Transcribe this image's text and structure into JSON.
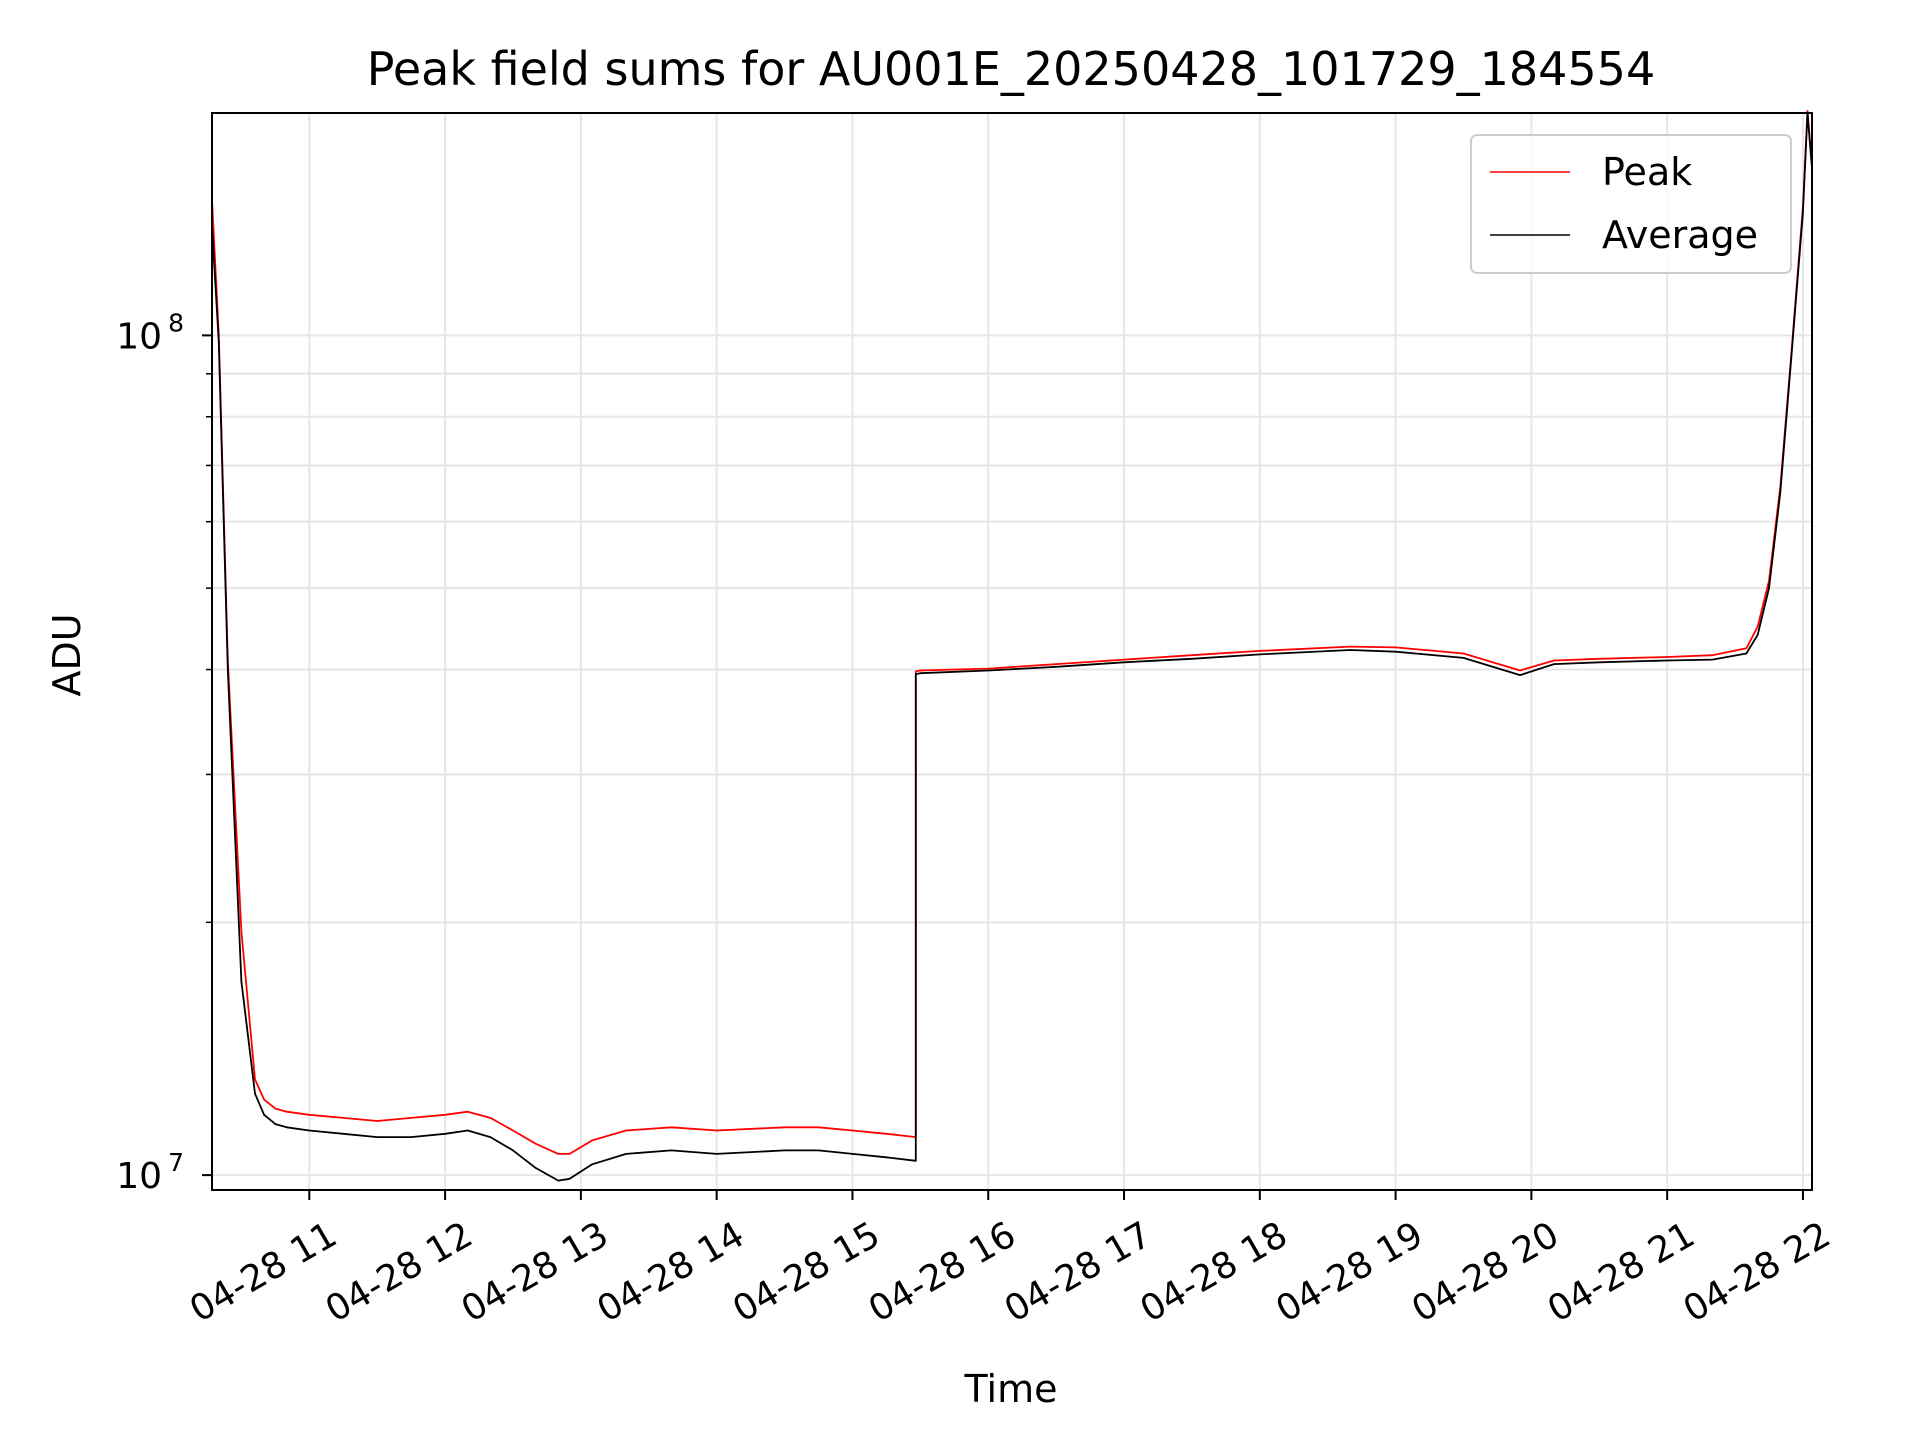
{
  "chart_data": {
    "type": "line",
    "title": "Peak field sums for AU001E_20250428_101729_184554",
    "xlabel": "Time",
    "ylabel": "ADU",
    "y_scale": "log",
    "ylim": [
      9600000,
      184000000
    ],
    "xlim": [
      "2025-04-28 10:17",
      "2025-04-28 22:04"
    ],
    "grid": true,
    "legend_position": "upper right",
    "x_ticks": [
      {
        "t": "2025-04-28 11:00",
        "label": "04-28 11"
      },
      {
        "t": "2025-04-28 12:00",
        "label": "04-28 12"
      },
      {
        "t": "2025-04-28 13:00",
        "label": "04-28 13"
      },
      {
        "t": "2025-04-28 14:00",
        "label": "04-28 14"
      },
      {
        "t": "2025-04-28 15:00",
        "label": "04-28 15"
      },
      {
        "t": "2025-04-28 16:00",
        "label": "04-28 16"
      },
      {
        "t": "2025-04-28 17:00",
        "label": "04-28 17"
      },
      {
        "t": "2025-04-28 18:00",
        "label": "04-28 18"
      },
      {
        "t": "2025-04-28 19:00",
        "label": "04-28 19"
      },
      {
        "t": "2025-04-28 20:00",
        "label": "04-28 20"
      },
      {
        "t": "2025-04-28 21:00",
        "label": "04-28 21"
      },
      {
        "t": "2025-04-28 22:00",
        "label": "04-28 22"
      }
    ],
    "y_ticks": [
      {
        "value": 10000000,
        "base": "10",
        "exp": "7"
      },
      {
        "value": 100000000,
        "base": "10",
        "exp": "8"
      }
    ],
    "series": [
      {
        "name": "Average",
        "color": "#000000",
        "x": [
          "2025-04-28 10:17",
          "2025-04-28 10:20",
          "2025-04-28 10:24",
          "2025-04-28 10:30",
          "2025-04-28 10:36",
          "2025-04-28 10:40",
          "2025-04-28 10:45",
          "2025-04-28 10:50",
          "2025-04-28 11:00",
          "2025-04-28 11:15",
          "2025-04-28 11:30",
          "2025-04-28 11:45",
          "2025-04-28 12:00",
          "2025-04-28 12:10",
          "2025-04-28 12:20",
          "2025-04-28 12:30",
          "2025-04-28 12:40",
          "2025-04-28 12:50",
          "2025-04-28 12:55",
          "2025-04-28 13:05",
          "2025-04-28 13:20",
          "2025-04-28 13:40",
          "2025-04-28 14:00",
          "2025-04-28 14:30",
          "2025-04-28 14:45",
          "2025-04-28 15:00",
          "2025-04-28 15:15",
          "2025-04-28 15:28",
          "2025-04-28 15:28",
          "2025-04-28 15:30",
          "2025-04-28 16:00",
          "2025-04-28 16:30",
          "2025-04-28 17:00",
          "2025-04-28 17:30",
          "2025-04-28 18:00",
          "2025-04-28 18:40",
          "2025-04-28 19:00",
          "2025-04-28 19:30",
          "2025-04-28 19:55",
          "2025-04-28 20:10",
          "2025-04-28 20:30",
          "2025-04-28 21:00",
          "2025-04-28 21:20",
          "2025-04-28 21:35",
          "2025-04-28 21:40",
          "2025-04-28 21:45",
          "2025-04-28 21:50",
          "2025-04-28 21:55",
          "2025-04-28 22:00",
          "2025-04-28 22:02",
          "2025-04-28 22:04"
        ],
        "y": [
          135000000,
          98000000,
          40000000,
          17000000,
          12500000,
          11800000,
          11500000,
          11400000,
          11300000,
          11200000,
          11100000,
          11100000,
          11200000,
          11300000,
          11100000,
          10700000,
          10200000,
          9850000,
          9900000,
          10300000,
          10600000,
          10700000,
          10600000,
          10700000,
          10700000,
          10600000,
          10500000,
          10400000,
          39500000,
          39600000,
          39900000,
          40300000,
          40800000,
          41200000,
          41700000,
          42200000,
          42000000,
          41300000,
          39400000,
          40600000,
          40800000,
          41000000,
          41100000,
          41800000,
          44000000,
          50000000,
          65000000,
          95000000,
          140000000,
          184000000,
          158000000
        ]
      },
      {
        "name": "Peak",
        "color": "#ff0000",
        "x": [
          "2025-04-28 10:17",
          "2025-04-28 10:20",
          "2025-04-28 10:24",
          "2025-04-28 10:30",
          "2025-04-28 10:36",
          "2025-04-28 10:40",
          "2025-04-28 10:45",
          "2025-04-28 10:50",
          "2025-04-28 11:00",
          "2025-04-28 11:15",
          "2025-04-28 11:30",
          "2025-04-28 11:45",
          "2025-04-28 12:00",
          "2025-04-28 12:10",
          "2025-04-28 12:20",
          "2025-04-28 12:30",
          "2025-04-28 12:40",
          "2025-04-28 12:50",
          "2025-04-28 12:55",
          "2025-04-28 13:05",
          "2025-04-28 13:20",
          "2025-04-28 13:40",
          "2025-04-28 14:00",
          "2025-04-28 14:30",
          "2025-04-28 14:45",
          "2025-04-28 15:00",
          "2025-04-28 15:15",
          "2025-04-28 15:28",
          "2025-04-28 15:28",
          "2025-04-28 15:30",
          "2025-04-28 16:00",
          "2025-04-28 16:30",
          "2025-04-28 17:00",
          "2025-04-28 17:30",
          "2025-04-28 18:00",
          "2025-04-28 18:40",
          "2025-04-28 19:00",
          "2025-04-28 19:30",
          "2025-04-28 19:55",
          "2025-04-28 20:10",
          "2025-04-28 20:30",
          "2025-04-28 21:00",
          "2025-04-28 21:20",
          "2025-04-28 21:35",
          "2025-04-28 21:40",
          "2025-04-28 21:45",
          "2025-04-28 21:50",
          "2025-04-28 21:55",
          "2025-04-28 22:00",
          "2025-04-28 22:02",
          "2025-04-28 22:04"
        ],
        "y": [
          145000000,
          100000000,
          41000000,
          19500000,
          13000000,
          12300000,
          12000000,
          11900000,
          11800000,
          11700000,
          11600000,
          11700000,
          11800000,
          11900000,
          11700000,
          11300000,
          10900000,
          10600000,
          10600000,
          11000000,
          11300000,
          11400000,
          11300000,
          11400000,
          11400000,
          11300000,
          11200000,
          11100000,
          39800000,
          39900000,
          40100000,
          40600000,
          41100000,
          41600000,
          42100000,
          42600000,
          42500000,
          41800000,
          39900000,
          41000000,
          41200000,
          41400000,
          41600000,
          42400000,
          45000000,
          51000000,
          66000000,
          96000000,
          142000000,
          185000000,
          159000000
        ]
      }
    ]
  }
}
